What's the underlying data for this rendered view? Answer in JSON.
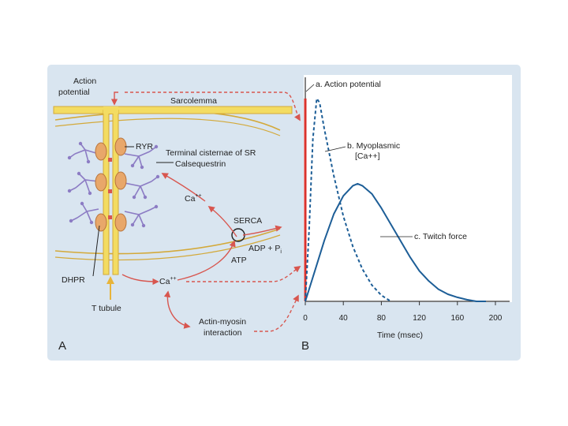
{
  "colors": {
    "frame_bg": "#d9e5f0",
    "plot_bg": "#ffffff",
    "membrane": "#f3dc62",
    "membrane_edge": "#d3a93a",
    "ryr": "#e8a76a",
    "calsequestrin": "#8c7cc4",
    "arrow": "#d8564f",
    "action_potential": "#d9322d",
    "curve": "#1d5e97",
    "axis": "#333333"
  },
  "panel_a": {
    "letter": "A",
    "labels": {
      "action_potential_line1": "Action",
      "action_potential_line2": "potential",
      "sarcolemma": "Sarcolemma",
      "ryr": "RYR",
      "terminal_cisternae": "Terminal cisternae of SR",
      "calsequestrin": "Calsequestrin",
      "ca_upper_base": "Ca",
      "ca_upper_sup": "++",
      "serca": "SERCA",
      "adp": "ADP + P",
      "adp_sub": "i",
      "atp": "ATP",
      "ca_lower_base": "Ca",
      "ca_lower_sup": "++",
      "dhpr": "DHPR",
      "t_tubule": "T tubule",
      "actin_myosin_line1": "Actin-myosin",
      "actin_myosin_line2": "interaction"
    }
  },
  "panel_b": {
    "letter": "B",
    "xlabel": "Time (msec)"
  },
  "chart_data": {
    "type": "line",
    "xlim": [
      0,
      200
    ],
    "x_ticks": [
      0,
      40,
      80,
      120,
      160,
      200
    ],
    "grid": false,
    "series": [
      {
        "name": "a. Action potential",
        "style": "solid",
        "color": "#d9322d",
        "x": [
          0,
          0,
          2
        ],
        "y": [
          0,
          1.0,
          1.0
        ]
      },
      {
        "name": "b. Myoplasmic [Ca++]",
        "style": "dashed",
        "color": "#1d5e97",
        "x": [
          0,
          4,
          8,
          12,
          15,
          20,
          30,
          40,
          50,
          60,
          70,
          80,
          90
        ],
        "y": [
          0.0,
          0.35,
          0.8,
          1.0,
          0.98,
          0.85,
          0.62,
          0.42,
          0.27,
          0.16,
          0.08,
          0.03,
          0.0
        ]
      },
      {
        "name": "c. Twitch force",
        "style": "solid",
        "color": "#1d5e97",
        "x": [
          0,
          10,
          20,
          30,
          40,
          50,
          55,
          60,
          70,
          80,
          90,
          100,
          110,
          120,
          130,
          140,
          150,
          160,
          170,
          180,
          190
        ],
        "y": [
          0.0,
          0.15,
          0.3,
          0.43,
          0.52,
          0.57,
          0.58,
          0.57,
          0.53,
          0.46,
          0.38,
          0.3,
          0.22,
          0.15,
          0.1,
          0.06,
          0.035,
          0.02,
          0.008,
          0.0,
          0.0
        ]
      }
    ],
    "ylim": [
      0,
      1.05
    ]
  }
}
